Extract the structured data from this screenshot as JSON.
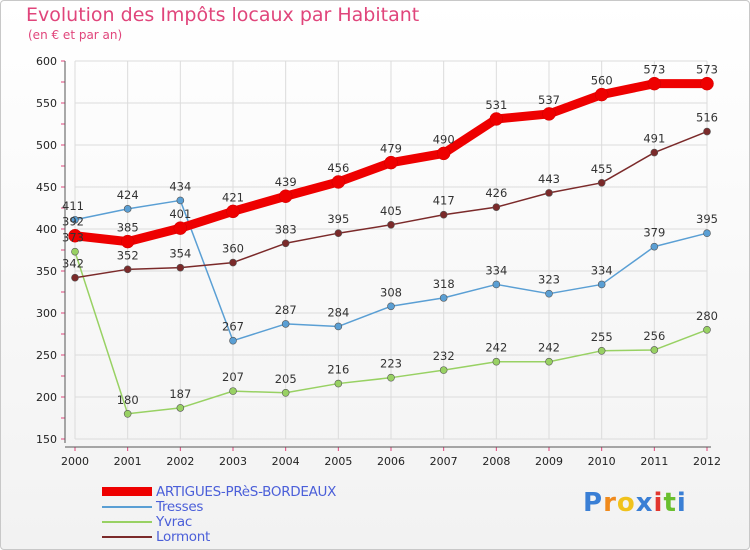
{
  "title": "Evolution des Impôts locaux par Habitant",
  "subtitle": "(en € et par an)",
  "logo": {
    "letters": [
      "P",
      "r",
      "o",
      "x",
      "i",
      "t",
      "i"
    ],
    "colors": [
      "#3a7fd5",
      "#f08a1c",
      "#f0c21c",
      "#3a7fd5",
      "#e2362e",
      "#6abf2e",
      "#3a7fd5"
    ]
  },
  "chart_data": {
    "type": "line",
    "title": "Evolution des Impôts locaux par Habitant",
    "subtitle": "(en € et par an)",
    "xlabel": "",
    "ylabel": "",
    "x": [
      "2000",
      "2001",
      "2002",
      "2003",
      "2004",
      "2005",
      "2006",
      "2007",
      "2008",
      "2009",
      "2010",
      "2011",
      "2012"
    ],
    "ylim": [
      150,
      600
    ],
    "yticks": [
      "150",
      "200",
      "250",
      "300",
      "350",
      "400",
      "450",
      "500",
      "550",
      "600"
    ],
    "grid": true,
    "legend_position": "bottom-left",
    "series": [
      {
        "name": "ARTIGUES-PRèS-BORDEAUX",
        "color": "#ee0000",
        "values": [
          392,
          385,
          401,
          421,
          439,
          456,
          479,
          490,
          531,
          537,
          560,
          573,
          573
        ],
        "labels": [
          "392",
          "385",
          "401",
          "421",
          "439",
          "456",
          "479",
          "490",
          "531",
          "537",
          "560",
          "573",
          "573"
        ]
      },
      {
        "name": "Tresses",
        "color": "#5a9fd4",
        "values": [
          411,
          424,
          434,
          267,
          287,
          284,
          308,
          318,
          334,
          323,
          334,
          379,
          395
        ],
        "labels": [
          "411",
          "424",
          "434",
          "267",
          "287",
          "284",
          "308",
          "318",
          "334",
          "323",
          "334",
          "379",
          "395"
        ]
      },
      {
        "name": "Yvrac",
        "color": "#98d163",
        "values": [
          373,
          180,
          187,
          207,
          205,
          216,
          223,
          232,
          242,
          242,
          255,
          256,
          280
        ],
        "labels": [
          "373",
          "180",
          "187",
          "207",
          "205",
          "216",
          "223",
          "232",
          "242",
          "242",
          "255",
          "256",
          "280"
        ]
      },
      {
        "name": "Lormont",
        "color": "#7b2a2a",
        "values": [
          342,
          352,
          354,
          360,
          383,
          395,
          405,
          417,
          426,
          443,
          455,
          491,
          516
        ],
        "labels": [
          "342",
          "352",
          "354",
          "360",
          "383",
          "395",
          "405",
          "417",
          "426",
          "443",
          "455",
          "491",
          "516"
        ]
      }
    ]
  }
}
